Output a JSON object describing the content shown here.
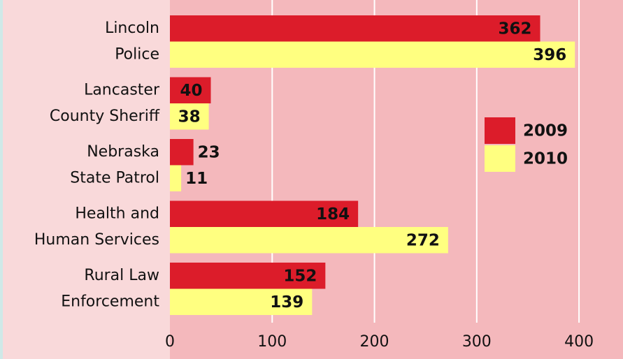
{
  "chart_data": {
    "type": "hbar",
    "categories": [
      [
        "Lincoln",
        "Police"
      ],
      [
        "Lancaster",
        "County Sheriff"
      ],
      [
        "Nebraska",
        "State Patrol"
      ],
      [
        "Health and",
        "Human Services"
      ],
      [
        "Rural Law",
        "Enforcement"
      ]
    ],
    "series": [
      {
        "name": "2009",
        "color": "#dc1c2a",
        "values": [
          362,
          40,
          23,
          184,
          152
        ]
      },
      {
        "name": "2010",
        "color": "#ffff80",
        "values": [
          396,
          38,
          11,
          272,
          139
        ]
      }
    ],
    "xlim": [
      0,
      443
    ],
    "xticks": [
      0,
      100,
      200,
      300,
      400
    ],
    "grid": true,
    "legend": "right"
  }
}
